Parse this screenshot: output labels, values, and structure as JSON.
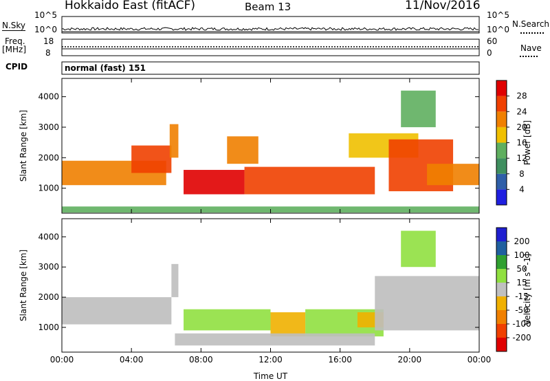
{
  "header": {
    "title": "Hokkaido East (fitACF)",
    "beam": "Beam 13",
    "date": "11/Nov/2016"
  },
  "strip": {
    "nsky_label": "N.Sky",
    "nsky_ticks": [
      "10^5",
      "10^0"
    ],
    "nsearch_label": "N.Search",
    "nsearch_ticks": [
      "10^5",
      "10^0"
    ],
    "freq_label_line1": "Freq.",
    "freq_label_line2": "[MHz]",
    "freq_ticks": [
      "18",
      "8"
    ],
    "nave_label": "Nave",
    "nave_ticks": [
      "60",
      "0"
    ],
    "cpid_label": "CPID",
    "mode_text": "normal (fast) 151"
  },
  "colors": {
    "power_scale": [
      "#1f1fe0",
      "#2f5fa8",
      "#3f8f5f",
      "#5faf5f",
      "#f0c000",
      "#f08000",
      "#f04000",
      "#e00000"
    ],
    "velocity_scale": [
      "#e00000",
      "#f04000",
      "#f08000",
      "#f0b000",
      "#c0c0c0",
      "#90e040",
      "#30a030",
      "#20609f",
      "#1f1fd0"
    ],
    "ground_scatter": "#bebebe"
  },
  "chart_data": [
    {
      "type": "heatmap",
      "title": "Power",
      "xlabel": "Time UT",
      "ylabel": "Slant Range [km]",
      "x_ticks": [
        "00:00",
        "04:00",
        "08:00",
        "12:00",
        "16:00",
        "20:00",
        "00:00"
      ],
      "xlim_hours": [
        0,
        24
      ],
      "y_ticks": [
        1000,
        2000,
        3000,
        4000
      ],
      "ylim_km": [
        180,
        4600
      ],
      "colorbar_label": "Power [dB]",
      "colorbar_ticks": [
        4,
        8,
        12,
        16,
        20,
        24,
        28
      ],
      "colorbar_range": [
        0,
        32
      ],
      "bands": [
        {
          "t0": 0.0,
          "t1": 6.0,
          "r0": 1100,
          "r1": 1900,
          "value": 22
        },
        {
          "t0": 4.0,
          "t1": 6.3,
          "r0": 1500,
          "r1": 2400,
          "value": 27
        },
        {
          "t0": 6.2,
          "t1": 6.7,
          "r0": 2000,
          "r1": 3100,
          "value": 20
        },
        {
          "t0": 7.0,
          "t1": 10.5,
          "r0": 800,
          "r1": 1600,
          "value": 28
        },
        {
          "t0": 10.5,
          "t1": 18.0,
          "r0": 800,
          "r1": 1700,
          "value": 27
        },
        {
          "t0": 9.5,
          "t1": 11.3,
          "r0": 1800,
          "r1": 2700,
          "value": 22
        },
        {
          "t0": 16.5,
          "t1": 20.5,
          "r0": 2000,
          "r1": 2800,
          "value": 19
        },
        {
          "t0": 18.8,
          "t1": 22.5,
          "r0": 900,
          "r1": 2600,
          "value": 27
        },
        {
          "t0": 21.0,
          "t1": 24.0,
          "r0": 1100,
          "r1": 1800,
          "value": 20
        },
        {
          "t0": 0.0,
          "t1": 24.0,
          "r0": 200,
          "r1": 400,
          "value": 12
        },
        {
          "t0": 19.5,
          "t1": 21.5,
          "r0": 3000,
          "r1": 4200,
          "value": 14
        }
      ]
    },
    {
      "type": "heatmap",
      "title": "Velocity",
      "xlabel": "Time UT",
      "ylabel": "Slant Range [km]",
      "x_ticks": [
        "00:00",
        "04:00",
        "08:00",
        "12:00",
        "16:00",
        "20:00",
        "00:00"
      ],
      "xlim_hours": [
        0,
        24
      ],
      "y_ticks": [
        1000,
        2000,
        3000,
        4000
      ],
      "ylim_km": [
        180,
        4600
      ],
      "colorbar_label": "Velocity [m s^-1]",
      "colorbar_ticks": [
        -200,
        -100,
        -50,
        -15,
        15,
        50,
        100,
        200
      ],
      "bands": [
        {
          "t0": 0.0,
          "t1": 6.3,
          "r0": 1100,
          "r1": 2000,
          "value": 0,
          "ground_scatter": true
        },
        {
          "t0": 6.3,
          "t1": 6.7,
          "r0": 2000,
          "r1": 3100,
          "value": 0,
          "ground_scatter": true
        },
        {
          "t0": 7.0,
          "t1": 12.0,
          "r0": 900,
          "r1": 1600,
          "value": 40
        },
        {
          "t0": 12.0,
          "t1": 14.0,
          "r0": 700,
          "r1": 1500,
          "value": -30
        },
        {
          "t0": 14.0,
          "t1": 18.5,
          "r0": 700,
          "r1": 1600,
          "value": 40
        },
        {
          "t0": 17.0,
          "t1": 18.5,
          "r0": 1000,
          "r1": 1500,
          "value": -30
        },
        {
          "t0": 18.0,
          "t1": 24.0,
          "r0": 900,
          "r1": 2700,
          "value": 0,
          "ground_scatter": true
        },
        {
          "t0": 6.5,
          "t1": 18.0,
          "r0": 400,
          "r1": 800,
          "value": 0,
          "ground_scatter": true
        },
        {
          "t0": 19.5,
          "t1": 21.5,
          "r0": 3000,
          "r1": 4200,
          "value": 40
        }
      ]
    }
  ]
}
